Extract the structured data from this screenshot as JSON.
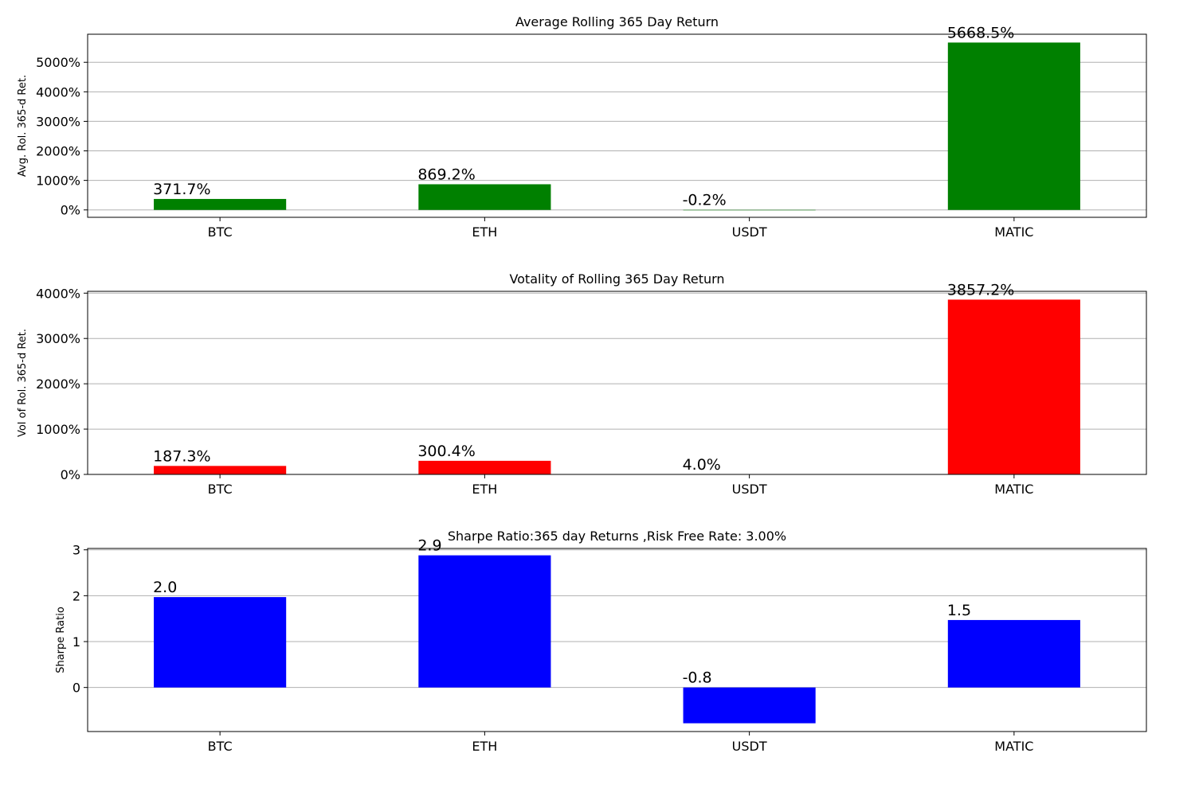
{
  "chart_data": [
    {
      "type": "bar",
      "title": "Average Rolling 365 Day Return",
      "ylabel": "Avg. Rol. 365-d Ret.",
      "categories": [
        "BTC",
        "ETH",
        "USDT",
        "MATIC"
      ],
      "values": [
        371.7,
        869.2,
        -0.2,
        5668.5
      ],
      "value_labels": [
        "371.7%",
        "869.2%",
        "-0.2%",
        "5668.5%"
      ],
      "color": "#008000",
      "ylim": [
        -250,
        5950
      ],
      "yticks": [
        0,
        1000,
        2000,
        3000,
        4000,
        5000
      ],
      "ytick_labels": [
        "0%",
        "1000%",
        "2000%",
        "3000%",
        "4000%",
        "5000%"
      ],
      "grid": "horizontal"
    },
    {
      "type": "bar",
      "title": "Votality of Rolling 365 Day Return",
      "ylabel": "Vol of Rol. 365-d Ret.",
      "categories": [
        "BTC",
        "ETH",
        "USDT",
        "MATIC"
      ],
      "values": [
        187.3,
        300.4,
        4.0,
        3857.2
      ],
      "value_labels": [
        "187.3%",
        "300.4%",
        "4.0%",
        "3857.2%"
      ],
      "color": "#ff0000",
      "ylim": [
        0,
        4040
      ],
      "yticks": [
        0,
        1000,
        2000,
        3000,
        4000
      ],
      "ytick_labels": [
        "0%",
        "1000%",
        "2000%",
        "3000%",
        "4000%"
      ],
      "grid": "horizontal"
    },
    {
      "type": "bar",
      "title": "Sharpe Ratio:365 day Returns ,Risk Free Rate: 3.00%",
      "ylabel": "Sharpe Ratio",
      "categories": [
        "BTC",
        "ETH",
        "USDT",
        "MATIC"
      ],
      "values": [
        1.97,
        2.88,
        -0.78,
        1.47
      ],
      "value_labels": [
        "2.0",
        "2.9",
        "-0.8",
        "1.5"
      ],
      "color": "#0000ff",
      "ylim": [
        -0.96,
        3.03
      ],
      "yticks": [
        0,
        1,
        2,
        3
      ],
      "ytick_labels": [
        "0",
        "1",
        "2",
        "3"
      ],
      "grid": "horizontal"
    }
  ]
}
